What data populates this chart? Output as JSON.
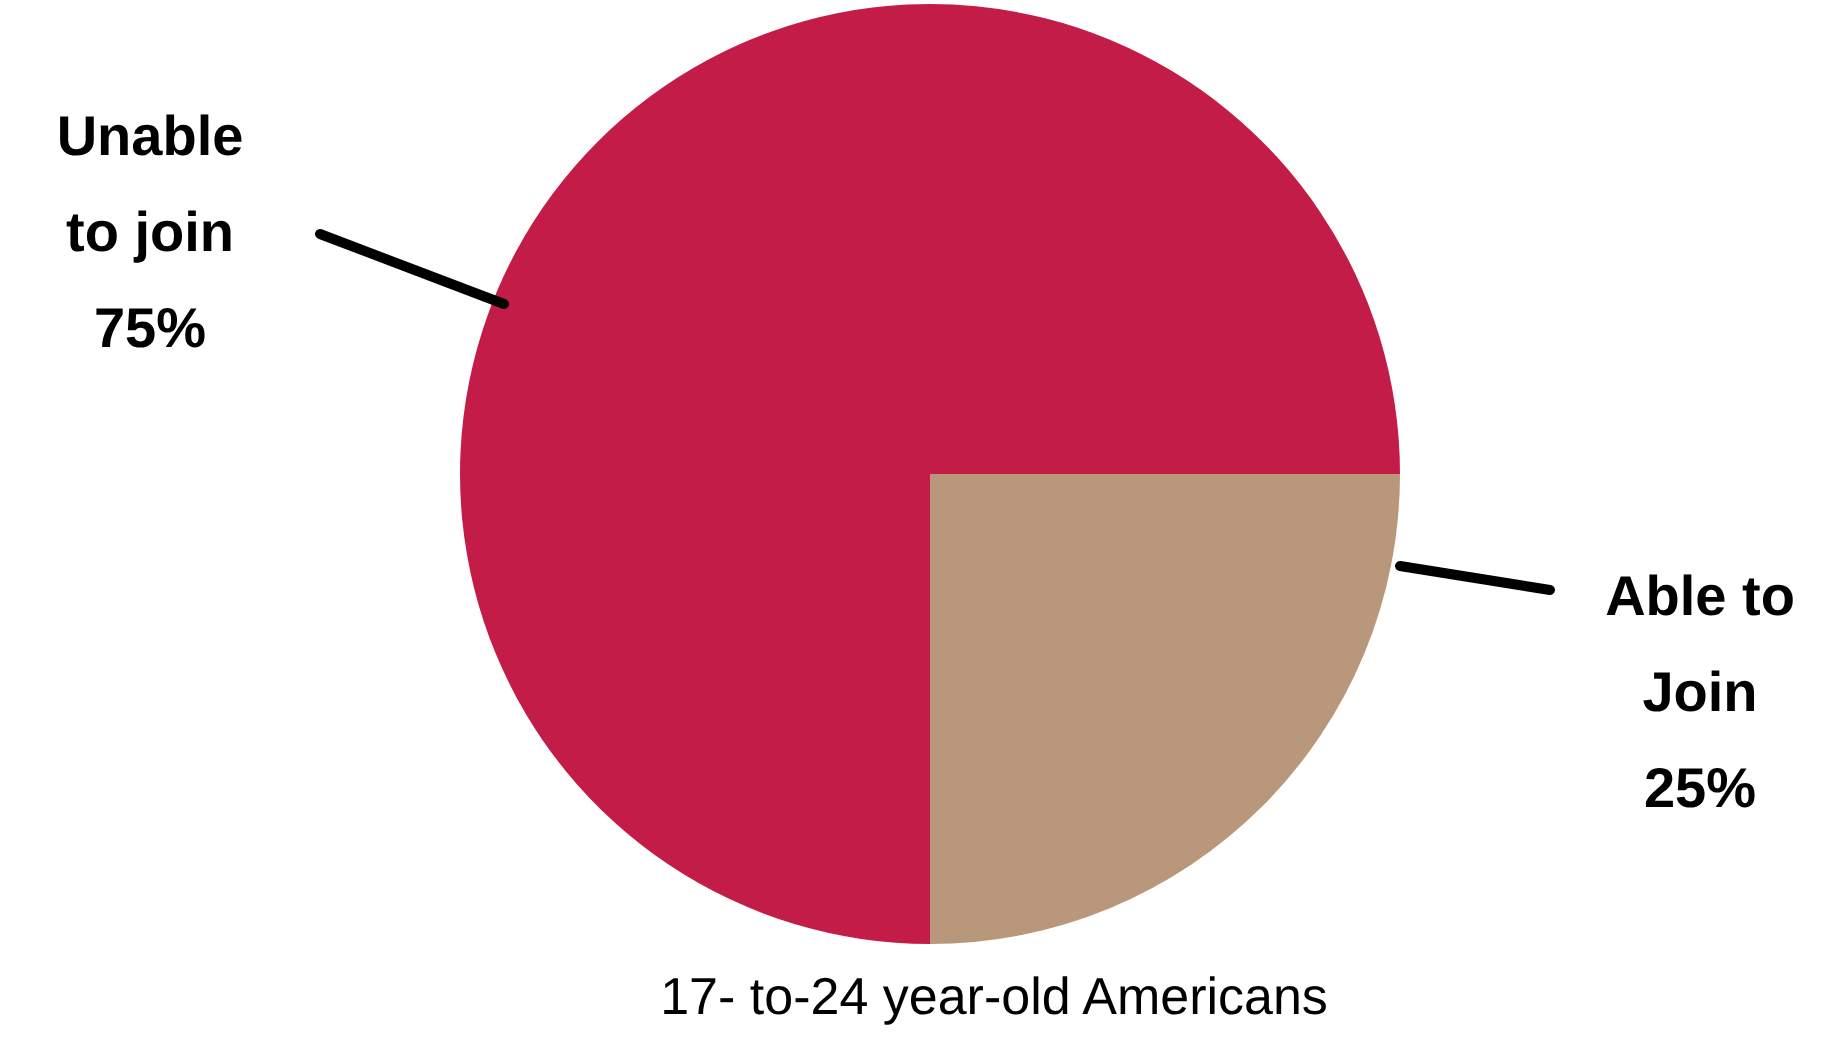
{
  "chart_data": {
    "type": "pie",
    "title": "17- to-24 year-old Americans",
    "categories": [
      "Unable to join",
      "Able to Join"
    ],
    "values": [
      75,
      25
    ],
    "value_labels": [
      "75%",
      "25%"
    ],
    "colors": [
      "#c41c48",
      "#b8977a"
    ],
    "legend": false
  }
}
